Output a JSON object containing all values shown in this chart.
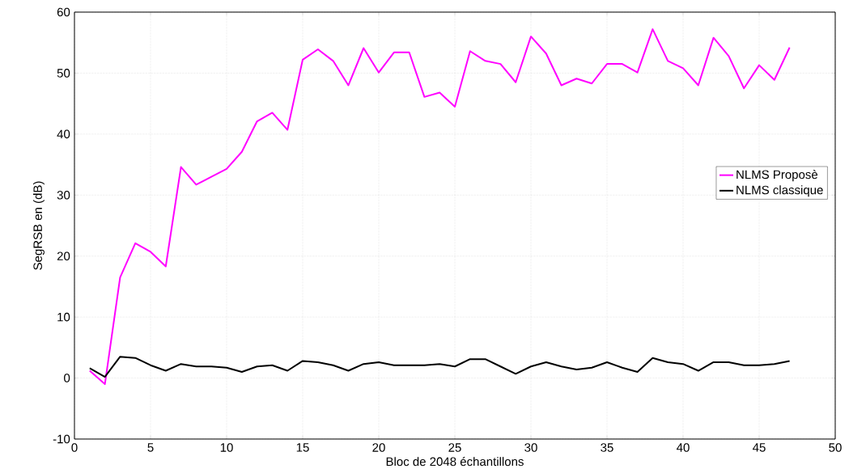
{
  "chart_data": {
    "type": "line",
    "xlabel": "Bloc de 2048 échantillons",
    "ylabel": "SegRSB en (dB)",
    "x": [
      1,
      2,
      3,
      4,
      5,
      6,
      7,
      8,
      9,
      10,
      11,
      12,
      13,
      14,
      15,
      16,
      17,
      18,
      19,
      20,
      21,
      22,
      23,
      24,
      25,
      26,
      27,
      28,
      29,
      30,
      31,
      32,
      33,
      34,
      35,
      36,
      37,
      38,
      39,
      40,
      41,
      42,
      43,
      44,
      45,
      46,
      47
    ],
    "series": [
      {
        "name": "NLMS Proposè",
        "color": "#ff00ff",
        "values": [
          1.2,
          -1,
          16.5,
          22.1,
          20.7,
          18.3,
          34.6,
          31.7,
          33,
          34.3,
          37.1,
          42.1,
          43.5,
          40.7,
          52.2,
          53.9,
          52,
          48,
          54.1,
          50.1,
          53.4,
          53.4,
          46.1,
          46.8,
          44.5,
          53.6,
          52,
          51.5,
          48.5,
          56,
          53.2,
          48,
          49.1,
          48.3,
          51.5,
          51.5,
          50.1,
          57.2,
          52,
          50.8,
          48,
          55.8,
          52.8,
          47.5,
          51.3,
          48.9,
          54.2
        ]
      },
      {
        "name": "NLMS classique",
        "color": "#000000",
        "values": [
          1.6,
          0.2,
          3.5,
          3.3,
          2.1,
          1.2,
          2.3,
          1.9,
          1.9,
          1.7,
          1,
          1.9,
          2.1,
          1.2,
          2.8,
          2.6,
          2.1,
          1.2,
          2.3,
          2.6,
          2.1,
          2.1,
          2.1,
          2.3,
          1.9,
          3.1,
          3.1,
          1.9,
          0.7,
          1.9,
          2.6,
          1.9,
          1.4,
          1.7,
          2.6,
          1.7,
          1,
          3.3,
          2.6,
          2.3,
          1.2,
          2.6,
          2.6,
          2.1,
          2.1,
          2.3,
          2.8
        ]
      }
    ],
    "xlim": [
      0,
      50
    ],
    "ylim": [
      -10,
      60
    ],
    "xticks": [
      0,
      5,
      10,
      15,
      20,
      25,
      30,
      35,
      40,
      45,
      50
    ],
    "yticks": [
      -10,
      0,
      10,
      20,
      30,
      40,
      50,
      60
    ],
    "grid": true,
    "legend": "right",
    "line_style": "solid",
    "marker": "none"
  }
}
